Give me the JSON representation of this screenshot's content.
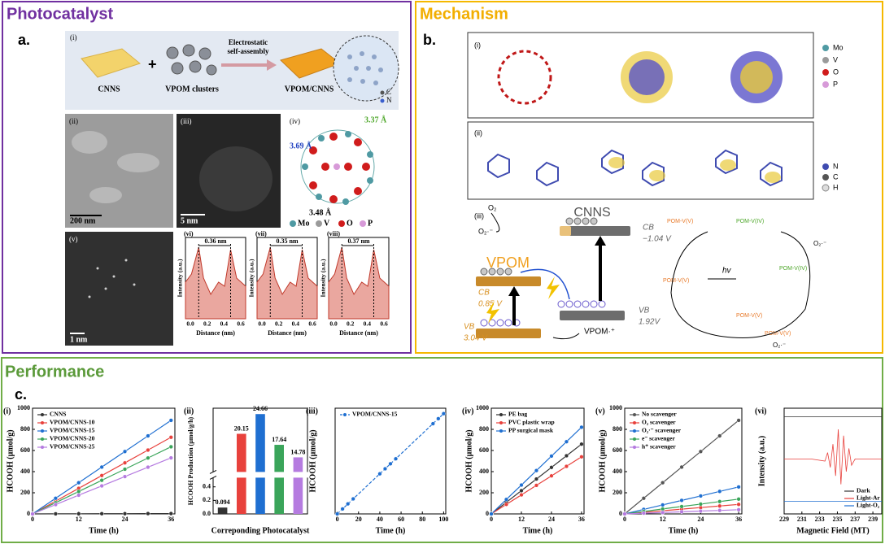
{
  "photocatalyst": {
    "title": "Photocatalyst",
    "label": "a.",
    "scheme": {
      "label": "(i)",
      "cnns": "CNNS",
      "clusters": "VPOM clusters",
      "arrow": [
        "Electrostatic",
        "self-assembly"
      ],
      "product": "VPOM/CNNS",
      "legend": [
        "C",
        "N"
      ]
    },
    "tem": [
      {
        "label": "(ii)",
        "scale": "200 nm"
      },
      {
        "label": "(iii)",
        "scale": "5 nm"
      },
      {
        "label": "(v)",
        "scale": "1 nm"
      }
    ],
    "structure": {
      "label": "(iv)",
      "distances": [
        "3.37 Å",
        "3.69 Å",
        "3.48 Å"
      ],
      "legend": [
        "Mo",
        "V",
        "O",
        "P"
      ]
    },
    "profiles": {
      "ylabel": "Intensity (a.u.)",
      "xlabel": "Distance (nm)",
      "xticks": [
        "0.0",
        "0.2",
        "0.4",
        "0.6"
      ],
      "panels": [
        {
          "label": "(vi)",
          "spacing": "0.36 nm"
        },
        {
          "label": "(vii)",
          "spacing": "0.35 nm"
        },
        {
          "label": "(viii)",
          "spacing": "0.37 nm"
        }
      ]
    }
  },
  "mechanism": {
    "title": "Mechanism",
    "label": "b.",
    "orbitals": {
      "label": "(i)",
      "legend": [
        "Mo",
        "V",
        "O",
        "P"
      ]
    },
    "cnns_orbitals": {
      "label": "(ii)",
      "legend": [
        "N",
        "C",
        "H"
      ]
    },
    "diagram": {
      "label": "(iii)",
      "o2": "O₂",
      "superoxide": "O₂·⁻",
      "cnns": "CNNS",
      "cnns_cb": "CB",
      "cnns_cb_potential": "−1.04 V",
      "cnns_vb": "VB",
      "cnns_vb_potential": "1.92V",
      "vpom": "VPOM",
      "vpom_cb": "CB",
      "vpom_cb_potential": "0.85 V",
      "vpom_vb": "VB",
      "vpom_vb_potential": "3.04 V",
      "vpom_radical": "VPOM·⁺"
    },
    "pathway": {
      "species": [
        "POM-V(V)",
        "POM-V(IV)",
        "POM-V(IV)",
        "POM-V(V)",
        "POM-V(V)",
        "POM-V(V)"
      ],
      "light": "hv",
      "superoxide": [
        "O₂·⁻",
        "O₂·⁻"
      ]
    }
  },
  "performance": {
    "title": "Performance",
    "label": "c."
  },
  "chart_data": [
    {
      "type": "line",
      "label": "(i)",
      "xlabel": "Time (h)",
      "ylabel": "HCOOH (μmol/g)",
      "x": [
        0,
        6,
        12,
        18,
        24,
        30,
        36
      ],
      "xlim": [
        0,
        37
      ],
      "ylim": [
        0,
        1000
      ],
      "xticks": [
        0,
        12,
        24,
        36
      ],
      "yticks": [
        0,
        200,
        400,
        600,
        800,
        1000
      ],
      "legend": "upper left",
      "series": [
        {
          "name": "CNNS",
          "color": "#333333",
          "values": [
            0,
            1,
            1,
            2,
            2,
            3,
            3
          ]
        },
        {
          "name": "VPOM/CNNS-10",
          "color": "#e8413c",
          "values": [
            0,
            121,
            242,
            363,
            483,
            604,
            725
          ]
        },
        {
          "name": "VPOM/CNNS-15",
          "color": "#1f6fd1",
          "values": [
            0,
            148,
            295,
            443,
            590,
            738,
            885
          ]
        },
        {
          "name": "VPOM/CNNS-20",
          "color": "#3aa55a",
          "values": [
            0,
            106,
            212,
            318,
            423,
            529,
            635
          ]
        },
        {
          "name": "VPOM/CNNS-25",
          "color": "#b57be0",
          "values": [
            0,
            88,
            177,
            265,
            353,
            442,
            530
          ]
        }
      ]
    },
    {
      "type": "bar",
      "label": "(ii)",
      "xlabel": "Correponding Photocatalyst",
      "ylabel": "HCOOH Production (μmol/g/h)",
      "categories": [
        null,
        null,
        null,
        null,
        null
      ],
      "values": [
        0.094,
        20.15,
        24.66,
        17.64,
        14.78
      ],
      "colors": [
        "#333333",
        "#e8413c",
        "#1f6fd1",
        "#3aa55a",
        "#b57be0"
      ],
      "ylim": [
        0,
        26
      ],
      "ybreak": [
        0.5,
        12
      ],
      "yticks": [
        {
          "value": 0,
          "label": "0.0"
        },
        {
          "value": 0.2,
          "label": "0.2"
        },
        {
          "value": 0.4,
          "label": "0.4"
        }
      ]
    },
    {
      "type": "line",
      "label": "(iii)",
      "xlabel": "Time (h)",
      "ylabel": "HCOOH (μmol/g)",
      "x": [
        0,
        5,
        10,
        15,
        40,
        45,
        50,
        55,
        90,
        95,
        100
      ],
      "xlim": [
        -2,
        102
      ],
      "ylim": [
        0,
        2600
      ],
      "xticks": [
        0,
        20,
        40,
        60,
        80,
        100
      ],
      "legend": "upper left",
      "series": [
        {
          "name": "VPOM/CNNS-15",
          "color": "#1f6fd1",
          "dashed": true,
          "values": [
            0,
            123,
            247,
            370,
            986,
            1110,
            1233,
            1356,
            2219,
            2343,
            2466
          ]
        }
      ]
    },
    {
      "type": "line",
      "label": "(iv)",
      "xlabel": "Time (h)",
      "ylabel": "HCOOH (μmol/g)",
      "x": [
        0,
        6,
        12,
        18,
        24,
        30,
        36
      ],
      "xlim": [
        0,
        37
      ],
      "ylim": [
        0,
        1000
      ],
      "xticks": [
        0,
        12,
        24,
        36
      ],
      "yticks": [
        0,
        200,
        400,
        600,
        800,
        1000
      ],
      "legend": "upper left",
      "series": [
        {
          "name": "PE bag",
          "color": "#333333",
          "values": [
            0,
            110,
            220,
            330,
            440,
            550,
            660
          ]
        },
        {
          "name": "PVC plastic wrap",
          "color": "#e8413c",
          "values": [
            0,
            90,
            180,
            270,
            360,
            450,
            540
          ]
        },
        {
          "name": "PP surgical mask",
          "color": "#1f6fd1",
          "values": [
            0,
            137,
            273,
            410,
            547,
            683,
            820
          ]
        }
      ]
    },
    {
      "type": "line",
      "label": "(v)",
      "xlabel": "Time (h)",
      "ylabel": "HCOOH (μmol/g)",
      "x": [
        0,
        6,
        12,
        18,
        24,
        30,
        36
      ],
      "xlim": [
        0,
        37
      ],
      "ylim": [
        0,
        1000
      ],
      "xticks": [
        0,
        12,
        24,
        36
      ],
      "yticks": [
        0,
        200,
        400,
        600,
        800,
        1000
      ],
      "legend": "upper left",
      "series": [
        {
          "name": "No scavenger",
          "color": "#555555",
          "values": [
            0,
            148,
            295,
            443,
            590,
            738,
            885
          ]
        },
        {
          "name": "O₂ scavenger",
          "color": "#e8413c",
          "values": [
            0,
            15,
            30,
            45,
            60,
            75,
            90
          ]
        },
        {
          "name": "O₂·⁻ scavenger",
          "color": "#1f6fd1",
          "values": [
            0,
            43,
            85,
            128,
            170,
            213,
            255
          ]
        },
        {
          "name": "e⁻ scavenger",
          "color": "#3aa55a",
          "values": [
            0,
            23,
            47,
            70,
            93,
            117,
            140
          ]
        },
        {
          "name": "h⁺ scavenger",
          "color": "#b57be0",
          "values": [
            0,
            7,
            13,
            20,
            27,
            33,
            40
          ]
        }
      ]
    },
    {
      "type": "line",
      "label": "(vi)",
      "xlabel": "Magnetic Field (MT)",
      "ylabel": "Intensity (a.u.)",
      "markers": false,
      "x": [
        229,
        232,
        233.6,
        233.9,
        234.2,
        234.5,
        234.8,
        235.1,
        235.4,
        235.7,
        236,
        236.3,
        236.6,
        237,
        240
      ],
      "xlim": [
        229,
        240
      ],
      "ylim": [
        0,
        100
      ],
      "xticks": [
        229,
        231,
        233,
        235,
        237,
        239
      ],
      "legend": "lower right",
      "series": [
        {
          "name": "Dark",
          "color": "#333333",
          "values": [
            92,
            92,
            92,
            92,
            92,
            92,
            92,
            92,
            92,
            92,
            92,
            92,
            92,
            92,
            92
          ]
        },
        {
          "name": "Light-Ar",
          "color": "#e8413c",
          "values": [
            52,
            52,
            50,
            58,
            44,
            66,
            36,
            80,
            28,
            74,
            40,
            62,
            46,
            52,
            52
          ]
        },
        {
          "name": "Light-O₂",
          "color": "#1f6fd1",
          "values": [
            12,
            12,
            12,
            12,
            12,
            12,
            12,
            12,
            12,
            12,
            12,
            12,
            12,
            12,
            12
          ]
        }
      ]
    }
  ]
}
